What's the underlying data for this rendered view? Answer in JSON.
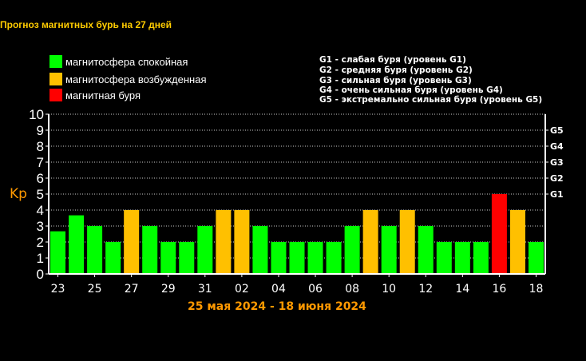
{
  "title": "Прогноз магнитных бурь на 27 дней",
  "legend": [
    {
      "label": "магнитосфера спокойная",
      "color": "#00ff00"
    },
    {
      "label": "магнитосфера возбужденная",
      "color": "#ffc000"
    },
    {
      "label": "магнитная буря",
      "color": "#ff0000"
    }
  ],
  "g_levels": [
    "G1 - слабая буря (уровень G1)",
    "G2 - средняя буря (уровень G2)",
    "G3 - сильная буря (уровень G3)",
    "G4 - очень сильная буря (уровень G4)",
    "G5 - экстремально сильная буря (уровень G5)"
  ],
  "date_range": "25 мая 2024 - 18 июня 2024",
  "chart_data": {
    "type": "bar",
    "ylabel": "Kp",
    "ylim": [
      0,
      10
    ],
    "y_ticks": [
      "0",
      "1",
      "2",
      "3",
      "4",
      "5",
      "6",
      "7",
      "8",
      "9",
      "10"
    ],
    "g_ticks": [
      {
        "label": "G1",
        "value": 5
      },
      {
        "label": "G2",
        "value": 6
      },
      {
        "label": "G3",
        "value": 7
      },
      {
        "label": "G4",
        "value": 8
      },
      {
        "label": "G5",
        "value": 9
      }
    ],
    "grid": "dotted horizontal",
    "x_tick_labels": [
      "23",
      "25",
      "27",
      "29",
      "31",
      "02",
      "04",
      "06",
      "08",
      "10",
      "12",
      "14",
      "16",
      "18"
    ],
    "values": [
      2.67,
      3.67,
      3,
      2,
      4,
      3,
      2,
      2,
      3,
      4,
      4,
      3,
      2,
      2,
      2,
      2,
      3,
      4,
      3,
      4,
      3,
      2,
      2,
      2,
      5,
      4,
      2
    ],
    "levels": [
      "quiet",
      "quiet",
      "quiet",
      "quiet",
      "active",
      "quiet",
      "quiet",
      "quiet",
      "quiet",
      "active",
      "active",
      "quiet",
      "quiet",
      "quiet",
      "quiet",
      "quiet",
      "quiet",
      "active",
      "quiet",
      "active",
      "quiet",
      "quiet",
      "quiet",
      "quiet",
      "storm",
      "active",
      "quiet"
    ],
    "level_colors": {
      "quiet": "#00ff00",
      "active": "#ffc000",
      "storm": "#ff0000"
    }
  }
}
